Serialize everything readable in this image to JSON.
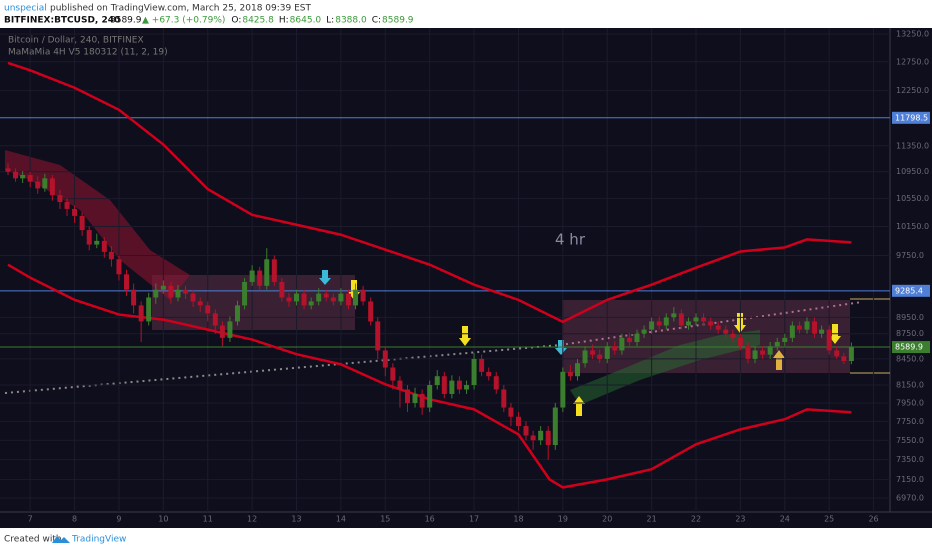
{
  "header": {
    "user": "unspecial",
    "published": "published on TradingView.com, March 25, 2018 09:39 EST",
    "symbol": "BITFINEX:BTCUSD, 240",
    "price": "8589.9",
    "change": "▲ +67.3 (+0.79%)",
    "quote": [
      {
        "k": "O:",
        "v": "8425.8"
      },
      {
        "k": "H:",
        "v": "8645.0"
      },
      {
        "k": "L:",
        "v": "8388.0"
      },
      {
        "k": "C:",
        "v": "8589.9"
      }
    ]
  },
  "footer": {
    "created": "Created with",
    "brand": "TradingView"
  },
  "chart_data": {
    "type": "candlestick",
    "legend": [
      "Bitcoin / Dollar, 240, BITFINEX",
      "MaMaMia 4H V5 180312 (11, 2, 19)"
    ],
    "annotation": "4 hr",
    "log_scale": true,
    "grid": true,
    "up_color": "#3b7f2e",
    "down_color": "#b5122b",
    "xlim": [
      6.32,
      26.37
    ],
    "xticks": [
      7,
      8,
      9,
      10,
      11,
      12,
      13,
      14,
      15,
      16,
      17,
      18,
      19,
      20,
      21,
      22,
      23,
      24,
      25,
      26
    ],
    "ylim": [
      6970,
      13250
    ],
    "yticks": [
      {
        "value": 13250,
        "label": "13250.0"
      },
      {
        "value": 12750,
        "label": "12750.0"
      },
      {
        "value": 12250,
        "label": "12250.0"
      },
      {
        "value": 11350,
        "label": "11350.0"
      },
      {
        "value": 10950,
        "label": "10950.0"
      },
      {
        "value": 10550,
        "label": "10550.0"
      },
      {
        "value": 10150,
        "label": "10150.0"
      },
      {
        "value": 9750,
        "label": "9750.0"
      },
      {
        "value": 8950,
        "label": "8950.0"
      },
      {
        "value": 8750,
        "label": "8750.0"
      },
      {
        "value": 8450,
        "label": "8450.0"
      },
      {
        "value": 8150,
        "label": "8150.0"
      },
      {
        "value": 7950,
        "label": "7950.0"
      },
      {
        "value": 7750,
        "label": "7750.0"
      },
      {
        "value": 7550,
        "label": "7550.0"
      },
      {
        "value": 7350,
        "label": "7350.0"
      },
      {
        "value": 7150,
        "label": "7150.0"
      },
      {
        "value": 6970,
        "label": "6970.0"
      }
    ],
    "levels": [
      {
        "value": 11798.5,
        "color": "#4f7fd6"
      },
      {
        "value": 9285.4,
        "color": "#4f7fd6"
      },
      {
        "value": 8589.9,
        "color": "#3b7f2e"
      }
    ],
    "x": [
      6.5,
      6.67,
      6.83,
      7,
      7.17,
      7.33,
      7.5,
      7.67,
      7.83,
      8,
      8.17,
      8.33,
      8.5,
      8.67,
      8.83,
      9,
      9.17,
      9.33,
      9.5,
      9.67,
      9.83,
      10,
      10.17,
      10.33,
      10.5,
      10.67,
      10.83,
      11,
      11.17,
      11.33,
      11.5,
      11.67,
      11.83,
      12,
      12.17,
      12.33,
      12.5,
      12.67,
      12.83,
      13,
      13.17,
      13.33,
      13.5,
      13.67,
      13.83,
      14,
      14.17,
      14.33,
      14.5,
      14.67,
      14.83,
      15,
      15.17,
      15.33,
      15.5,
      15.67,
      15.83,
      16,
      16.17,
      16.33,
      16.5,
      16.67,
      16.83,
      17,
      17.17,
      17.33,
      17.5,
      17.67,
      17.83,
      18,
      18.17,
      18.33,
      18.5,
      18.67,
      18.83,
      19,
      19.17,
      19.33,
      19.5,
      19.67,
      19.83,
      20,
      20.17,
      20.33,
      20.5,
      20.67,
      20.83,
      21,
      21.17,
      21.33,
      21.5,
      21.67,
      21.83,
      22,
      22.17,
      22.33,
      22.5,
      22.67,
      22.83,
      23,
      23.17,
      23.33,
      23.5,
      23.67,
      23.83,
      24,
      24.17,
      24.33,
      24.5,
      24.67,
      24.83,
      25,
      25.17,
      25.33,
      25.5
    ],
    "ohlc": [
      [
        11000,
        11080,
        10900,
        10950
      ],
      [
        10950,
        11000,
        10800,
        10850
      ],
      [
        10850,
        10960,
        10780,
        10900
      ],
      [
        10900,
        10950,
        10720,
        10800
      ],
      [
        10800,
        10880,
        10620,
        10700
      ],
      [
        10700,
        10920,
        10650,
        10850
      ],
      [
        10850,
        10900,
        10520,
        10600
      ],
      [
        10600,
        10680,
        10400,
        10500
      ],
      [
        10500,
        10560,
        10300,
        10400
      ],
      [
        10400,
        10450,
        10200,
        10300
      ],
      [
        10300,
        10350,
        10020,
        10100
      ],
      [
        10100,
        10150,
        9820,
        9900
      ],
      [
        9900,
        10050,
        9850,
        9950
      ],
      [
        9950,
        10000,
        9720,
        9800
      ],
      [
        9800,
        9880,
        9600,
        9700
      ],
      [
        9700,
        9750,
        9420,
        9500
      ],
      [
        9500,
        9560,
        9220,
        9300
      ],
      [
        9300,
        9380,
        9000,
        9100
      ],
      [
        9100,
        9150,
        8650,
        8900
      ],
      [
        8900,
        9260,
        8850,
        9200
      ],
      [
        9200,
        9380,
        9120,
        9300
      ],
      [
        9300,
        9420,
        9250,
        9350
      ],
      [
        9350,
        9400,
        9120,
        9200
      ],
      [
        9200,
        9360,
        9150,
        9300
      ],
      [
        9300,
        9350,
        9180,
        9250
      ],
      [
        9250,
        9300,
        9080,
        9150
      ],
      [
        9150,
        9200,
        9020,
        9100
      ],
      [
        9100,
        9150,
        8900,
        9000
      ],
      [
        9000,
        9050,
        8750,
        8850
      ],
      [
        8850,
        8900,
        8600,
        8700
      ],
      [
        8700,
        8960,
        8650,
        8900
      ],
      [
        8900,
        9160,
        8850,
        9100
      ],
      [
        9100,
        9450,
        9050,
        9400
      ],
      [
        9400,
        9620,
        9350,
        9550
      ],
      [
        9550,
        9600,
        9300,
        9350
      ],
      [
        9350,
        9850,
        9300,
        9700
      ],
      [
        9700,
        9750,
        9350,
        9400
      ],
      [
        9400,
        9450,
        9150,
        9200
      ],
      [
        9200,
        9260,
        9080,
        9150
      ],
      [
        9150,
        9300,
        9100,
        9250
      ],
      [
        9250,
        9300,
        9050,
        9100
      ],
      [
        9100,
        9200,
        9050,
        9150
      ],
      [
        9150,
        9320,
        9100,
        9250
      ],
      [
        9250,
        9300,
        9150,
        9200
      ],
      [
        9200,
        9250,
        9100,
        9150
      ],
      [
        9150,
        9320,
        9100,
        9250
      ],
      [
        9250,
        9300,
        9050,
        9100
      ],
      [
        9100,
        9380,
        9050,
        9300
      ],
      [
        9300,
        9350,
        9100,
        9150
      ],
      [
        9150,
        9200,
        8850,
        8900
      ],
      [
        8900,
        8950,
        8450,
        8550
      ],
      [
        8550,
        8600,
        8250,
        8350
      ],
      [
        8350,
        8400,
        8100,
        8200
      ],
      [
        8200,
        8250,
        7900,
        8100
      ],
      [
        8100,
        8150,
        7850,
        7950
      ],
      [
        7950,
        8120,
        7900,
        8050
      ],
      [
        8050,
        8100,
        7820,
        7900
      ],
      [
        7900,
        8200,
        7850,
        8150
      ],
      [
        8150,
        8320,
        8100,
        8250
      ],
      [
        8250,
        8300,
        8000,
        8050
      ],
      [
        8050,
        8260,
        8000,
        8200
      ],
      [
        8200,
        8250,
        8050,
        8100
      ],
      [
        8100,
        8200,
        8050,
        8150
      ],
      [
        8150,
        8520,
        8100,
        8450
      ],
      [
        8450,
        8500,
        8250,
        8300
      ],
      [
        8300,
        8350,
        8200,
        8250
      ],
      [
        8250,
        8300,
        8050,
        8100
      ],
      [
        8100,
        8150,
        7850,
        7900
      ],
      [
        7900,
        7950,
        7700,
        7800
      ],
      [
        7800,
        7850,
        7650,
        7700
      ],
      [
        7700,
        7750,
        7550,
        7600
      ],
      [
        7600,
        7650,
        7450,
        7550
      ],
      [
        7550,
        7700,
        7500,
        7650
      ],
      [
        7650,
        7700,
        7350,
        7500
      ],
      [
        7500,
        7950,
        7450,
        7900
      ],
      [
        7900,
        8350,
        7850,
        8300
      ],
      [
        8300,
        8380,
        8200,
        8250
      ],
      [
        8250,
        8450,
        8200,
        8400
      ],
      [
        8400,
        8600,
        8350,
        8550
      ],
      [
        8550,
        8620,
        8450,
        8500
      ],
      [
        8500,
        8560,
        8400,
        8450
      ],
      [
        8450,
        8650,
        8400,
        8600
      ],
      [
        8600,
        8660,
        8500,
        8550
      ],
      [
        8550,
        8750,
        8500,
        8700
      ],
      [
        8700,
        8760,
        8600,
        8650
      ],
      [
        8650,
        8800,
        8600,
        8750
      ],
      [
        8750,
        8850,
        8700,
        8800
      ],
      [
        8800,
        8950,
        8750,
        8900
      ],
      [
        8900,
        8960,
        8800,
        8850
      ],
      [
        8850,
        9000,
        8800,
        8950
      ],
      [
        8950,
        9080,
        8900,
        9000
      ],
      [
        9000,
        9050,
        8800,
        8850
      ],
      [
        8850,
        8950,
        8800,
        8900
      ],
      [
        8900,
        9000,
        8850,
        8950
      ],
      [
        8950,
        9000,
        8850,
        8900
      ],
      [
        8900,
        8950,
        8800,
        8850
      ],
      [
        8850,
        8900,
        8750,
        8800
      ],
      [
        8800,
        8850,
        8700,
        8750
      ],
      [
        8750,
        8800,
        8650,
        8700
      ],
      [
        8700,
        8750,
        8550,
        8600
      ],
      [
        8600,
        8650,
        8400,
        8450
      ],
      [
        8450,
        8600,
        8400,
        8550
      ],
      [
        8550,
        8600,
        8450,
        8500
      ],
      [
        8500,
        8650,
        8450,
        8600
      ],
      [
        8600,
        8700,
        8550,
        8650
      ],
      [
        8650,
        8750,
        8600,
        8700
      ],
      [
        8700,
        8900,
        8650,
        8850
      ],
      [
        8850,
        8900,
        8750,
        8800
      ],
      [
        8800,
        8950,
        8750,
        8900
      ],
      [
        8900,
        8950,
        8700,
        8750
      ],
      [
        8750,
        8850,
        8700,
        8800
      ],
      [
        8800,
        8850,
        8500,
        8550
      ],
      [
        8550,
        8600,
        8450,
        8480
      ],
      [
        8480,
        8520,
        8388,
        8425.8
      ],
      [
        8425.8,
        8645,
        8388,
        8589.9
      ]
    ],
    "bands": [
      {
        "color": "#d0001c",
        "x": [
          6.5,
          7,
          8,
          9,
          10,
          11,
          12,
          13,
          14,
          15,
          16,
          17,
          18,
          19,
          20,
          21,
          22,
          23,
          24,
          24.5,
          25.5
        ],
        "values": [
          12730,
          12600,
          12300,
          11930,
          11370,
          10690,
          10315,
          10175,
          10035,
          9830,
          9628,
          9365,
          9170,
          8895,
          9170,
          9365,
          9588,
          9805,
          9860,
          9970,
          9930
        ]
      },
      {
        "color": "#d0001c",
        "x": [
          6.5,
          7,
          8,
          9,
          10,
          11,
          12,
          13,
          14,
          15,
          16,
          17,
          18,
          18.7,
          19,
          20,
          21,
          22,
          23,
          24,
          24.5,
          25.5
        ],
        "values": [
          9628,
          9456,
          9170,
          8985,
          8923,
          8800,
          8680,
          8505,
          8387,
          8158,
          7990,
          7880,
          7612,
          7152,
          7073,
          7152,
          7253,
          7508,
          7665,
          7773,
          7880,
          7848
        ]
      }
    ]
  }
}
